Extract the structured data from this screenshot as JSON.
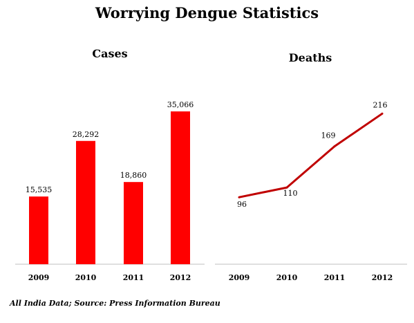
{
  "title": "Worrying Dengue Statistics",
  "source_note": "All India Data; Source: Press Information Bureau",
  "colors": {
    "bar": "#ff0000",
    "line": "#c00000",
    "axis": "#bfbfbf"
  },
  "chart_data": [
    {
      "type": "bar",
      "title": "Cases",
      "categories": [
        "2009",
        "2010",
        "2011",
        "2012"
      ],
      "values": [
        15535,
        28292,
        18860,
        35066
      ],
      "value_labels": [
        "15,535",
        "28,292",
        "18,860",
        "35,066"
      ],
      "ylim": [
        0,
        40000
      ],
      "grid": false
    },
    {
      "type": "line",
      "title": "Deaths",
      "categories": [
        "2009",
        "2010",
        "2011",
        "2012"
      ],
      "values": [
        96,
        110,
        169,
        216
      ],
      "value_labels": [
        "96",
        "110",
        "169",
        "216"
      ],
      "ylim": [
        0,
        250
      ],
      "grid": false
    }
  ]
}
